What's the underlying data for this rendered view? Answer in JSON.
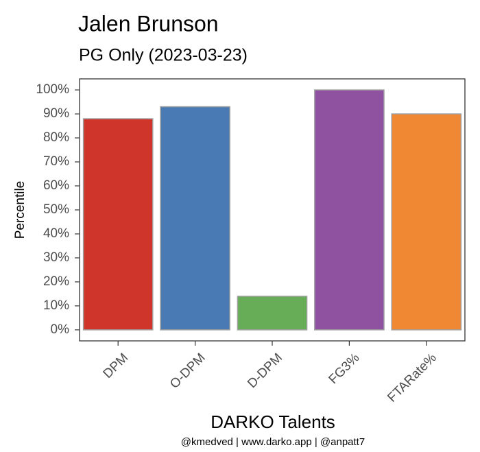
{
  "chart_data": {
    "type": "bar",
    "title": "Jalen Brunson",
    "subtitle": "PG Only (2023-03-23)",
    "x_label": "DARKO Talents",
    "y_label": "Percentile",
    "caption": "@kmedved | www.darko.app | @anpatt7",
    "categories": [
      "DPM",
      "O-DPM",
      "D-DPM",
      "FG3%",
      "FTARate%"
    ],
    "values": [
      88,
      93,
      14,
      100,
      90
    ],
    "colors": [
      "#d0352b",
      "#4a7ab4",
      "#67ad57",
      "#8e52a1",
      "#ef8733"
    ],
    "ylim": [
      -4.6,
      104.6
    ],
    "yticks": [
      {
        "value": 0,
        "label": "0%"
      },
      {
        "value": 10,
        "label": "10%"
      },
      {
        "value": 20,
        "label": "20%"
      },
      {
        "value": 30,
        "label": "30%"
      },
      {
        "value": 40,
        "label": "40%"
      },
      {
        "value": 50,
        "label": "50%"
      },
      {
        "value": 60,
        "label": "60%"
      },
      {
        "value": 70,
        "label": "70%"
      },
      {
        "value": 80,
        "label": "80%"
      },
      {
        "value": 90,
        "label": "90%"
      },
      {
        "value": 100,
        "label": "100%"
      }
    ],
    "grid": false
  }
}
